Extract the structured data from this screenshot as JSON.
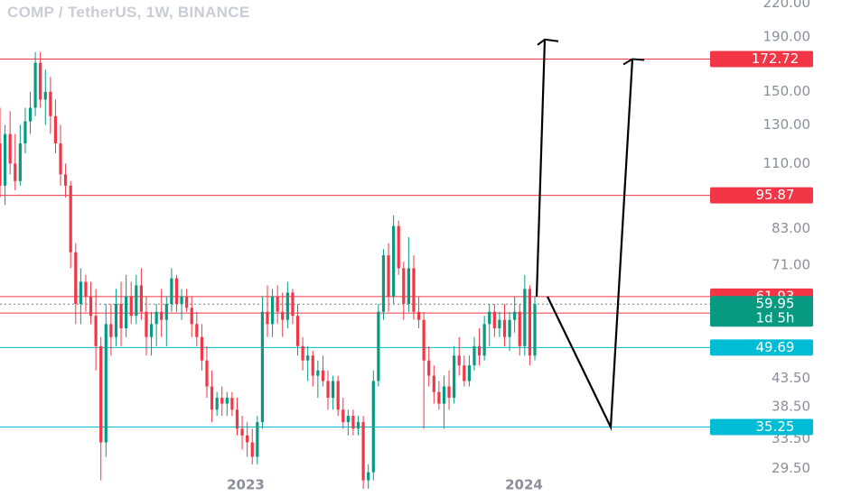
{
  "chart_data": {
    "type": "candlestick",
    "title": "COMP / TetherUS, 1W, BINANCE",
    "y_scale": "log",
    "ylim": [
      27,
      230
    ],
    "y_ticks": [
      "220.00",
      "190.00",
      "150.00",
      "130.00",
      "110.00",
      "83.00",
      "71.00",
      "43.50",
      "38.50",
      "33.50",
      "29.50"
    ],
    "x_ticks": [
      "2023",
      "2024"
    ],
    "levels": [
      {
        "label": "172.72",
        "value": 172.72,
        "color": "#f23645"
      },
      {
        "label": "95.87",
        "value": 95.87,
        "color": "#f23645"
      },
      {
        "label": "61.93",
        "value": 61.93,
        "color": "#f23645"
      },
      {
        "label": "57.69",
        "value": 57.69,
        "color": "#f23645"
      },
      {
        "label": "49.69",
        "value": 49.69,
        "color": "#00bcd4"
      },
      {
        "label": "35.25",
        "value": 35.25,
        "color": "#00bcd4"
      }
    ],
    "current_price": {
      "value": 59.95,
      "label": "59.95",
      "countdown": "1d 5h",
      "color": "#089981"
    },
    "candles": [
      {
        "o": 120,
        "h": 140,
        "l": 95,
        "c": 100
      },
      {
        "o": 100,
        "h": 130,
        "l": 92,
        "c": 125
      },
      {
        "o": 125,
        "h": 138,
        "l": 105,
        "c": 110
      },
      {
        "o": 110,
        "h": 125,
        "l": 98,
        "c": 102
      },
      {
        "o": 102,
        "h": 130,
        "l": 100,
        "c": 120
      },
      {
        "o": 120,
        "h": 140,
        "l": 115,
        "c": 132
      },
      {
        "o": 132,
        "h": 150,
        "l": 125,
        "c": 140
      },
      {
        "o": 140,
        "h": 178,
        "l": 135,
        "c": 170
      },
      {
        "o": 170,
        "h": 178,
        "l": 140,
        "c": 145
      },
      {
        "o": 145,
        "h": 165,
        "l": 130,
        "c": 150
      },
      {
        "o": 150,
        "h": 160,
        "l": 125,
        "c": 135
      },
      {
        "o": 135,
        "h": 145,
        "l": 115,
        "c": 120
      },
      {
        "o": 120,
        "h": 130,
        "l": 100,
        "c": 105
      },
      {
        "o": 105,
        "h": 110,
        "l": 95,
        "c": 100
      },
      {
        "o": 100,
        "h": 102,
        "l": 70,
        "c": 75
      },
      {
        "o": 75,
        "h": 78,
        "l": 55,
        "c": 60
      },
      {
        "o": 60,
        "h": 70,
        "l": 55,
        "c": 66
      },
      {
        "o": 66,
        "h": 68,
        "l": 58,
        "c": 62
      },
      {
        "o": 62,
        "h": 66,
        "l": 55,
        "c": 57
      },
      {
        "o": 57,
        "h": 64,
        "l": 45,
        "c": 50
      },
      {
        "o": 50,
        "h": 52,
        "l": 28,
        "c": 33
      },
      {
        "o": 33,
        "h": 60,
        "l": 31,
        "c": 55
      },
      {
        "o": 55,
        "h": 60,
        "l": 48,
        "c": 52
      },
      {
        "o": 52,
        "h": 64,
        "l": 50,
        "c": 60
      },
      {
        "o": 60,
        "h": 66,
        "l": 50,
        "c": 54
      },
      {
        "o": 54,
        "h": 68,
        "l": 52,
        "c": 62
      },
      {
        "o": 62,
        "h": 66,
        "l": 55,
        "c": 57
      },
      {
        "o": 57,
        "h": 68,
        "l": 55,
        "c": 65
      },
      {
        "o": 65,
        "h": 70,
        "l": 56,
        "c": 58
      },
      {
        "o": 58,
        "h": 62,
        "l": 48,
        "c": 52
      },
      {
        "o": 52,
        "h": 58,
        "l": 48,
        "c": 55
      },
      {
        "o": 55,
        "h": 60,
        "l": 50,
        "c": 58
      },
      {
        "o": 58,
        "h": 64,
        "l": 52,
        "c": 56
      },
      {
        "o": 56,
        "h": 62,
        "l": 50,
        "c": 60
      },
      {
        "o": 60,
        "h": 70,
        "l": 58,
        "c": 67
      },
      {
        "o": 67,
        "h": 68,
        "l": 58,
        "c": 60
      },
      {
        "o": 60,
        "h": 64,
        "l": 56,
        "c": 62
      },
      {
        "o": 62,
        "h": 64,
        "l": 58,
        "c": 59
      },
      {
        "o": 59,
        "h": 62,
        "l": 52,
        "c": 55
      },
      {
        "o": 55,
        "h": 58,
        "l": 50,
        "c": 52
      },
      {
        "o": 52,
        "h": 55,
        "l": 45,
        "c": 47
      },
      {
        "o": 47,
        "h": 50,
        "l": 40,
        "c": 42
      },
      {
        "o": 42,
        "h": 45,
        "l": 36,
        "c": 38
      },
      {
        "o": 38,
        "h": 41,
        "l": 37,
        "c": 40
      },
      {
        "o": 40,
        "h": 42,
        "l": 37,
        "c": 39
      },
      {
        "o": 39,
        "h": 41,
        "l": 37,
        "c": 40
      },
      {
        "o": 40,
        "h": 41,
        "l": 37,
        "c": 38
      },
      {
        "o": 38,
        "h": 40,
        "l": 34,
        "c": 35
      },
      {
        "o": 35,
        "h": 37,
        "l": 32,
        "c": 34
      },
      {
        "o": 34,
        "h": 36,
        "l": 31,
        "c": 33
      },
      {
        "o": 33,
        "h": 35,
        "l": 30,
        "c": 31
      },
      {
        "o": 31,
        "h": 37,
        "l": 30,
        "c": 36
      },
      {
        "o": 36,
        "h": 62,
        "l": 35,
        "c": 58
      },
      {
        "o": 58,
        "h": 65,
        "l": 52,
        "c": 55
      },
      {
        "o": 55,
        "h": 64,
        "l": 52,
        "c": 62
      },
      {
        "o": 62,
        "h": 65,
        "l": 55,
        "c": 58
      },
      {
        "o": 58,
        "h": 63,
        "l": 52,
        "c": 56
      },
      {
        "o": 56,
        "h": 66,
        "l": 54,
        "c": 63
      },
      {
        "o": 63,
        "h": 64,
        "l": 55,
        "c": 57
      },
      {
        "o": 57,
        "h": 60,
        "l": 48,
        "c": 50
      },
      {
        "o": 50,
        "h": 52,
        "l": 45,
        "c": 47
      },
      {
        "o": 47,
        "h": 50,
        "l": 43,
        "c": 48
      },
      {
        "o": 48,
        "h": 49,
        "l": 42,
        "c": 44
      },
      {
        "o": 44,
        "h": 47,
        "l": 40,
        "c": 45
      },
      {
        "o": 45,
        "h": 48,
        "l": 42,
        "c": 43
      },
      {
        "o": 43,
        "h": 45,
        "l": 38,
        "c": 40
      },
      {
        "o": 40,
        "h": 44,
        "l": 38,
        "c": 43
      },
      {
        "o": 43,
        "h": 44,
        "l": 37,
        "c": 38
      },
      {
        "o": 38,
        "h": 40,
        "l": 35,
        "c": 36
      },
      {
        "o": 36,
        "h": 38,
        "l": 34,
        "c": 37
      },
      {
        "o": 37,
        "h": 38,
        "l": 34,
        "c": 35
      },
      {
        "o": 35,
        "h": 37,
        "l": 34,
        "c": 36
      },
      {
        "o": 36,
        "h": 37,
        "l": 27,
        "c": 28
      },
      {
        "o": 28,
        "h": 30,
        "l": 27,
        "c": 29
      },
      {
        "o": 29,
        "h": 45,
        "l": 28,
        "c": 43
      },
      {
        "o": 43,
        "h": 60,
        "l": 42,
        "c": 58
      },
      {
        "o": 58,
        "h": 76,
        "l": 56,
        "c": 74
      },
      {
        "o": 74,
        "h": 78,
        "l": 58,
        "c": 62
      },
      {
        "o": 62,
        "h": 88,
        "l": 60,
        "c": 84
      },
      {
        "o": 84,
        "h": 86,
        "l": 68,
        "c": 70
      },
      {
        "o": 70,
        "h": 72,
        "l": 56,
        "c": 60
      },
      {
        "o": 60,
        "h": 80,
        "l": 58,
        "c": 70
      },
      {
        "o": 70,
        "h": 74,
        "l": 56,
        "c": 58
      },
      {
        "o": 58,
        "h": 62,
        "l": 54,
        "c": 56
      },
      {
        "o": 56,
        "h": 58,
        "l": 35,
        "c": 47
      },
      {
        "o": 47,
        "h": 50,
        "l": 42,
        "c": 44
      },
      {
        "o": 44,
        "h": 46,
        "l": 39,
        "c": 41
      },
      {
        "o": 41,
        "h": 43,
        "l": 38,
        "c": 39
      },
      {
        "o": 39,
        "h": 44,
        "l": 35,
        "c": 42
      },
      {
        "o": 42,
        "h": 45,
        "l": 38,
        "c": 40
      },
      {
        "o": 40,
        "h": 50,
        "l": 39,
        "c": 48
      },
      {
        "o": 48,
        "h": 52,
        "l": 44,
        "c": 46
      },
      {
        "o": 46,
        "h": 48,
        "l": 42,
        "c": 43
      },
      {
        "o": 43,
        "h": 48,
        "l": 42,
        "c": 46
      },
      {
        "o": 46,
        "h": 52,
        "l": 45,
        "c": 50
      },
      {
        "o": 50,
        "h": 54,
        "l": 46,
        "c": 48
      },
      {
        "o": 48,
        "h": 57,
        "l": 47,
        "c": 55
      },
      {
        "o": 55,
        "h": 60,
        "l": 50,
        "c": 58
      },
      {
        "o": 58,
        "h": 60,
        "l": 52,
        "c": 54
      },
      {
        "o": 54,
        "h": 58,
        "l": 52,
        "c": 56
      },
      {
        "o": 56,
        "h": 60,
        "l": 50,
        "c": 52
      },
      {
        "o": 52,
        "h": 58,
        "l": 49,
        "c": 56
      },
      {
        "o": 56,
        "h": 62,
        "l": 53,
        "c": 58
      },
      {
        "o": 58,
        "h": 60,
        "l": 48,
        "c": 50
      },
      {
        "o": 50,
        "h": 68,
        "l": 48,
        "c": 64
      },
      {
        "o": 64,
        "h": 65,
        "l": 46,
        "c": 48
      },
      {
        "o": 48,
        "h": 62,
        "l": 47,
        "c": 59.95
      }
    ],
    "projection_arrows": [
      {
        "from": 61.93,
        "to": 188
      },
      {
        "from": 61.93,
        "via": 35.25,
        "to": 172.72
      }
    ]
  }
}
